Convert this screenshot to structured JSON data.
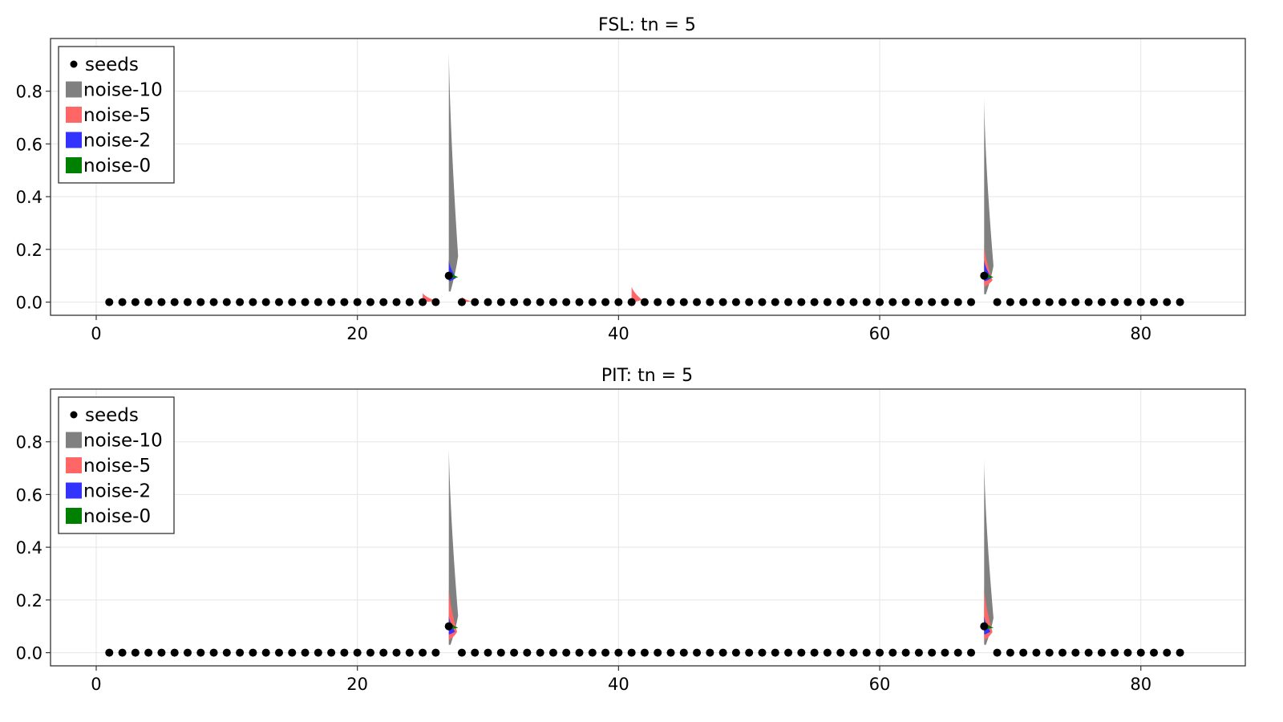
{
  "colors": {
    "seeds": "#000000",
    "noise-10": "#808080",
    "noise-5": "#ff6666",
    "noise-2": "#3333ff",
    "noise-0": "#008000"
  },
  "chart_data": [
    {
      "type": "scatter",
      "title": "FSL: tn = 5",
      "xlabel": "",
      "ylabel": "",
      "xlim": [
        -3.5,
        88
      ],
      "ylim": [
        -0.05,
        1.0
      ],
      "xticks": [
        0,
        20,
        40,
        60,
        80
      ],
      "xtick_labels": [
        "0",
        "20",
        "40",
        "60",
        "80"
      ],
      "yticks": [
        0.0,
        0.2,
        0.4,
        0.6,
        0.8
      ],
      "ytick_labels": [
        "0.0",
        "0.2",
        "0.4",
        "0.6",
        "0.8"
      ],
      "grid": true,
      "legend_position": "top-left",
      "legend": [
        "seeds",
        "noise-10",
        "noise-5",
        "noise-2",
        "noise-0"
      ],
      "seeds": {
        "name": "seeds",
        "x_range": [
          1,
          83
        ],
        "baseline_value": 0.0,
        "peaks": [
          {
            "x": 27,
            "y": 0.1
          },
          {
            "x": 68,
            "y": 0.1
          }
        ]
      },
      "noise_distributions": [
        {
          "name": "noise-10",
          "x": 27,
          "range": [
            0.04,
            0.98
          ],
          "peak_width": 0.9
        },
        {
          "name": "noise-5",
          "x": 27,
          "range": [
            0.08,
            0.16
          ],
          "peak_width": 0.6
        },
        {
          "name": "noise-2",
          "x": 27,
          "range": [
            0.08,
            0.16
          ],
          "peak_width": 0.7
        },
        {
          "name": "noise-0",
          "x": 27,
          "range": [
            0.09,
            0.12
          ],
          "peak_width": 0.9
        },
        {
          "name": "noise-10",
          "x": 68,
          "range": [
            0.03,
            0.78
          ],
          "peak_width": 0.9
        },
        {
          "name": "noise-5",
          "x": 68,
          "range": [
            0.06,
            0.22
          ],
          "peak_width": 0.8
        },
        {
          "name": "noise-2",
          "x": 68,
          "range": [
            0.08,
            0.16
          ],
          "peak_width": 0.7
        },
        {
          "name": "noise-0",
          "x": 68,
          "range": [
            0.09,
            0.12
          ],
          "peak_width": 0.9
        },
        {
          "name": "noise-5",
          "x": 25,
          "range": [
            0.0,
            0.035
          ],
          "peak_width": 1.2
        },
        {
          "name": "noise-5",
          "x": 28,
          "range": [
            0.0,
            0.02
          ],
          "peak_width": 0.9
        },
        {
          "name": "noise-5",
          "x": 41,
          "range": [
            0.0,
            0.06
          ],
          "peak_width": 1.0
        }
      ]
    },
    {
      "type": "scatter",
      "title": "PIT: tn = 5",
      "xlabel": "",
      "ylabel": "",
      "xlim": [
        -3.5,
        88
      ],
      "ylim": [
        -0.05,
        1.0
      ],
      "xticks": [
        0,
        20,
        40,
        60,
        80
      ],
      "xtick_labels": [
        "0",
        "20",
        "40",
        "60",
        "80"
      ],
      "yticks": [
        0.0,
        0.2,
        0.4,
        0.6,
        0.8
      ],
      "ytick_labels": [
        "0.0",
        "0.2",
        "0.4",
        "0.6",
        "0.8"
      ],
      "grid": true,
      "legend_position": "top-left",
      "legend": [
        "seeds",
        "noise-10",
        "noise-5",
        "noise-2",
        "noise-0"
      ],
      "seeds": {
        "name": "seeds",
        "x_range": [
          1,
          83
        ],
        "baseline_value": 0.0,
        "peaks": [
          {
            "x": 27,
            "y": 0.1
          },
          {
            "x": 68,
            "y": 0.1
          }
        ]
      },
      "noise_distributions": [
        {
          "name": "noise-10",
          "x": 27,
          "range": [
            0.03,
            0.8
          ],
          "peak_width": 0.9
        },
        {
          "name": "noise-5",
          "x": 27,
          "range": [
            0.05,
            0.25
          ],
          "peak_width": 0.8
        },
        {
          "name": "noise-2",
          "x": 27,
          "range": [
            0.07,
            0.14
          ],
          "peak_width": 0.6
        },
        {
          "name": "noise-0",
          "x": 27,
          "range": [
            0.09,
            0.12
          ],
          "peak_width": 0.9
        },
        {
          "name": "noise-10",
          "x": 68,
          "range": [
            0.03,
            0.74
          ],
          "peak_width": 0.9
        },
        {
          "name": "noise-5",
          "x": 68,
          "range": [
            0.05,
            0.25
          ],
          "peak_width": 0.8
        },
        {
          "name": "noise-2",
          "x": 68,
          "range": [
            0.07,
            0.14
          ],
          "peak_width": 0.6
        },
        {
          "name": "noise-0",
          "x": 68,
          "range": [
            0.09,
            0.12
          ],
          "peak_width": 0.9
        }
      ]
    }
  ]
}
